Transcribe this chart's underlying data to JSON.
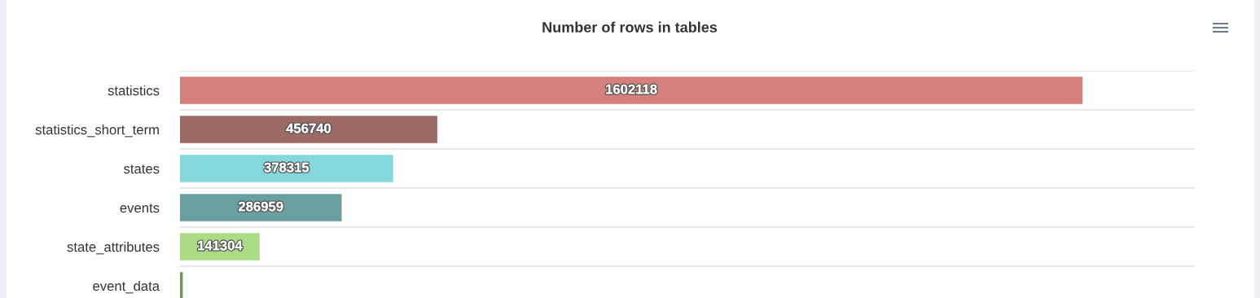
{
  "chart_data": {
    "type": "bar",
    "orientation": "horizontal",
    "title": "Number of rows in tables",
    "categories": [
      "statistics",
      "statistics_short_term",
      "states",
      "events",
      "state_attributes",
      "event_data"
    ],
    "values": [
      1602118,
      456740,
      378315,
      286959,
      141304,
      5000
    ],
    "colors": [
      "#d6807b",
      "#9e6a66",
      "#84d8db",
      "#6a9f9f",
      "#a9dc84",
      "#6f9a5a"
    ],
    "value_labels": [
      "1602118",
      "456740",
      "378315",
      "286959",
      "141304",
      null
    ],
    "xlim": [
      0,
      1800000
    ],
    "grid": "y",
    "legend": false,
    "tick_labels": "y"
  }
}
